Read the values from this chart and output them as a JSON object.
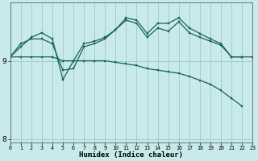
{
  "xlabel": "Humidex (Indice chaleur)",
  "background_color": "#c8eaea",
  "grid_color": "#a0c8c8",
  "line_color": "#1a6060",
  "xlim": [
    0,
    23
  ],
  "ylim": [
    7.95,
    9.75
  ],
  "yticks": [
    8,
    9
  ],
  "xticks": [
    0,
    1,
    2,
    3,
    4,
    5,
    6,
    7,
    8,
    9,
    10,
    11,
    12,
    13,
    14,
    15,
    16,
    17,
    18,
    19,
    20,
    21,
    22,
    23
  ],
  "s1_x": [
    0,
    1,
    2,
    3,
    4,
    5,
    6,
    7,
    8,
    9,
    10,
    11,
    12,
    13,
    14,
    15,
    16,
    17,
    18,
    19,
    20,
    21,
    22,
    23
  ],
  "s1_y": [
    9.05,
    9.22,
    9.28,
    9.28,
    9.22,
    8.88,
    8.9,
    9.18,
    9.22,
    9.28,
    9.4,
    9.55,
    9.52,
    9.35,
    9.48,
    9.48,
    9.55,
    9.42,
    9.35,
    9.28,
    9.22,
    9.05,
    9.05,
    9.05
  ],
  "s2_x": [
    0,
    1,
    2,
    3,
    4,
    5,
    6,
    7,
    8,
    9,
    10,
    11,
    12,
    13,
    14,
    15,
    16,
    17,
    18,
    19,
    20,
    21,
    22
  ],
  "s2_y": [
    9.05,
    9.18,
    9.3,
    9.36,
    9.28,
    8.76,
    9.0,
    9.22,
    9.25,
    9.3,
    9.4,
    9.52,
    9.48,
    9.3,
    9.42,
    9.38,
    9.5,
    9.36,
    9.3,
    9.25,
    9.2,
    9.05,
    9.05
  ],
  "s3_x": [
    0,
    1,
    2,
    3,
    4,
    5,
    6,
    7,
    8,
    9,
    10,
    11,
    12,
    13,
    14,
    15,
    16,
    17,
    18,
    19,
    20,
    21,
    22
  ],
  "s3_y": [
    9.05,
    9.05,
    9.05,
    9.05,
    9.05,
    9.0,
    9.0,
    9.0,
    9.0,
    9.0,
    8.98,
    8.96,
    8.94,
    8.9,
    8.88,
    8.86,
    8.84,
    8.8,
    8.75,
    8.7,
    8.62,
    8.52,
    8.42
  ]
}
